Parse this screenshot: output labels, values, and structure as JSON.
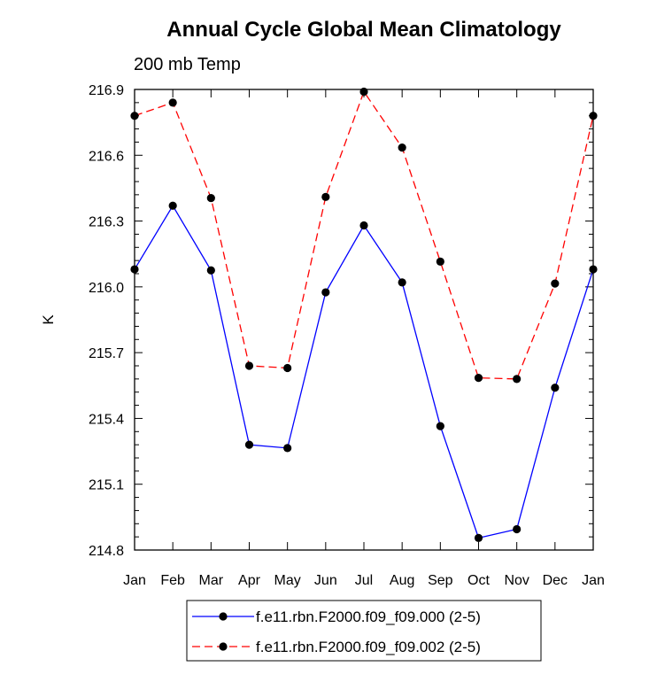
{
  "chart_data": {
    "type": "line",
    "title": "Annual Cycle Global Mean Climatology",
    "subtitle": "200 mb Temp",
    "xlabel": "",
    "ylabel": "K",
    "categories": [
      "Jan",
      "Feb",
      "Mar",
      "Apr",
      "May",
      "Jun",
      "Jul",
      "Aug",
      "Sep",
      "Oct",
      "Nov",
      "Dec",
      "Jan"
    ],
    "ylim": [
      214.8,
      216.9
    ],
    "yticks": [
      "216.9",
      "216.6",
      "216.3",
      "216.0",
      "215.7",
      "215.4",
      "215.1",
      "214.8"
    ],
    "grid": false,
    "legend_position": "bottom",
    "series": [
      {
        "name": "f.e11.rbn.F2000.f09_f09.000 (2-5)",
        "color": "#0000ff",
        "line_style": "solid",
        "marker": "filled-circle",
        "values": [
          216.08,
          216.37,
          216.075,
          215.28,
          215.265,
          215.975,
          216.28,
          216.02,
          215.365,
          214.855,
          214.895,
          215.54,
          216.08
        ]
      },
      {
        "name": "f.e11.rbn.F2000.f09_f09.002 (2-5)",
        "color": "#ff0000",
        "line_style": "dashed",
        "marker": "filled-circle",
        "values": [
          216.78,
          216.84,
          216.405,
          215.64,
          215.63,
          216.41,
          216.89,
          216.635,
          216.115,
          215.585,
          215.58,
          216.015,
          216.78
        ]
      }
    ]
  }
}
